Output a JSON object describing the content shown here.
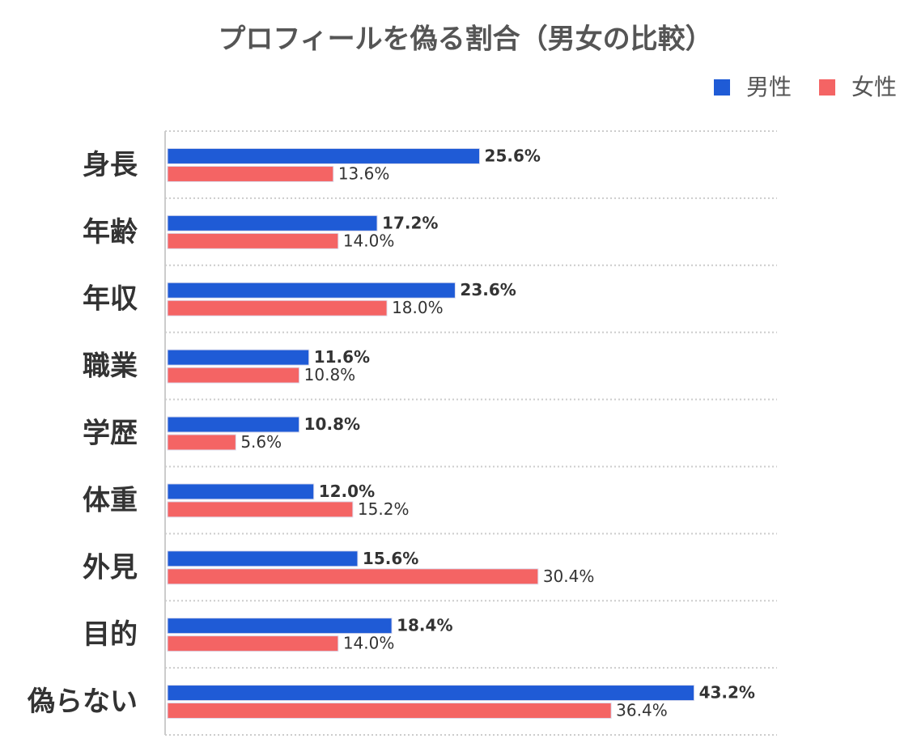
{
  "chart_data": {
    "type": "bar",
    "orientation": "horizontal",
    "title": "プロフィールを偽る割合（男女の比較）",
    "categories": [
      "身長",
      "年齢",
      "年収",
      "職業",
      "学歴",
      "体重",
      "外見",
      "目的",
      "偽らない"
    ],
    "series": [
      {
        "name": "男性",
        "color": "#1f5bd6",
        "values": [
          25.6,
          17.2,
          23.6,
          11.6,
          10.8,
          12.0,
          15.6,
          18.4,
          43.2
        ],
        "value_labels": [
          "25.6%",
          "17.2%",
          "23.6%",
          "11.6%",
          "10.8%",
          "12.0%",
          "15.6%",
          "18.4%",
          "43.2%"
        ]
      },
      {
        "name": "女性",
        "color": "#f46464",
        "values": [
          13.6,
          14.0,
          18.0,
          10.8,
          5.6,
          15.2,
          30.4,
          14.0,
          36.4
        ],
        "value_labels": [
          "13.6%",
          "14.0%",
          "18.0%",
          "10.8%",
          "5.6%",
          "15.2%",
          "30.4%",
          "14.0%",
          "36.4%"
        ]
      }
    ],
    "xlim": [
      0,
      50
    ],
    "grid": true,
    "legend": "top-right"
  }
}
